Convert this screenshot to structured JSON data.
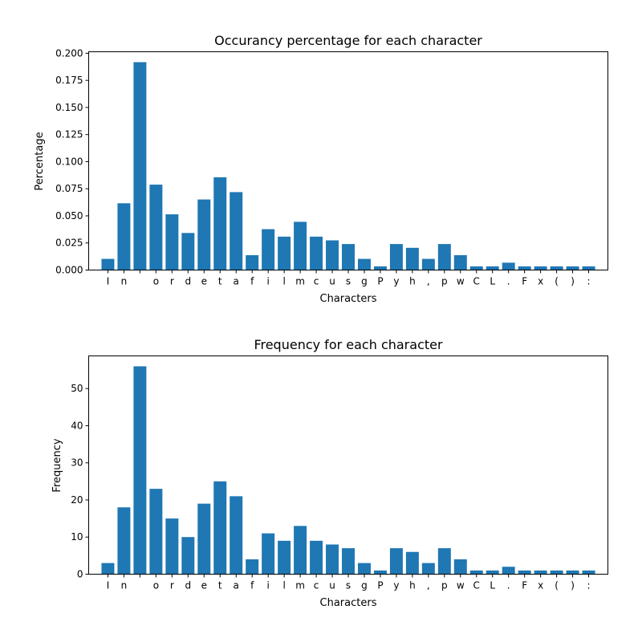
{
  "chart_data": [
    {
      "type": "bar",
      "title": "Occurancy percentage for each character",
      "xlabel": "Characters",
      "ylabel": "Percentage",
      "categories": [
        "I",
        "n",
        " ",
        "o",
        "r",
        "d",
        "e",
        "t",
        "a",
        "f",
        "i",
        "l",
        "m",
        "c",
        "u",
        "s",
        "g",
        "P",
        "y",
        "h",
        ",",
        "p",
        "w",
        "C",
        "L",
        ".",
        "F",
        "x",
        "(",
        ")",
        ":"
      ],
      "values": [
        0.0103,
        0.0616,
        0.1918,
        0.0788,
        0.0514,
        0.0342,
        0.0651,
        0.0856,
        0.0719,
        0.0137,
        0.0377,
        0.0308,
        0.0445,
        0.0308,
        0.0274,
        0.024,
        0.0103,
        0.0034,
        0.024,
        0.0205,
        0.0103,
        0.024,
        0.0137,
        0.0034,
        0.0034,
        0.0068,
        0.0034,
        0.0034,
        0.0034,
        0.0034,
        0.0034
      ],
      "ylim": [
        0,
        0.2014
      ],
      "yticks": [
        0.0,
        0.025,
        0.05,
        0.075,
        0.1,
        0.125,
        0.15,
        0.175,
        0.2
      ],
      "ytick_labels": [
        "0.000",
        "0.025",
        "0.050",
        "0.075",
        "0.100",
        "0.125",
        "0.150",
        "0.175",
        "0.200"
      ],
      "bar_color": "#1f77b4",
      "grid": false
    },
    {
      "type": "bar",
      "title": "Frequency for each character",
      "xlabel": "Characters",
      "ylabel": "Frequency",
      "categories": [
        "I",
        "n",
        " ",
        "o",
        "r",
        "d",
        "e",
        "t",
        "a",
        "f",
        "i",
        "l",
        "m",
        "c",
        "u",
        "s",
        "g",
        "P",
        "y",
        "h",
        ",",
        "p",
        "w",
        "C",
        "L",
        ".",
        "F",
        "x",
        "(",
        ")",
        ":"
      ],
      "values": [
        3,
        18,
        56,
        23,
        15,
        10,
        19,
        25,
        21,
        4,
        11,
        9,
        13,
        9,
        8,
        7,
        3,
        1,
        7,
        6,
        3,
        7,
        4,
        1,
        1,
        2,
        1,
        1,
        1,
        1,
        1
      ],
      "ylim": [
        0,
        58.8
      ],
      "yticks": [
        0,
        10,
        20,
        30,
        40,
        50
      ],
      "ytick_labels": [
        "0",
        "10",
        "20",
        "30",
        "40",
        "50"
      ],
      "bar_color": "#1f77b4",
      "grid": false
    }
  ]
}
